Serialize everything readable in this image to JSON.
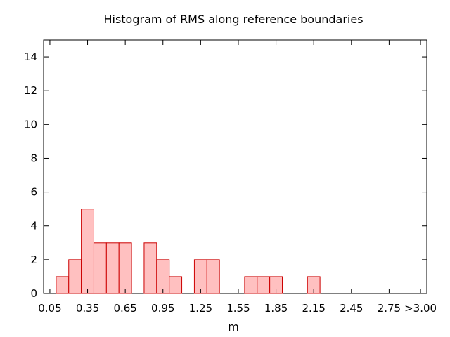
{
  "chart_data": {
    "type": "bar",
    "title": "Histogram of RMS along reference boundaries",
    "xlabel": "m",
    "ylabel": "",
    "xlim": [
      0.0,
      3.05
    ],
    "ylim": [
      0,
      15
    ],
    "bin_width": 0.1,
    "y_ticks": [
      0,
      2,
      4,
      6,
      8,
      10,
      12,
      14
    ],
    "x_ticks": [
      {
        "value": 0.05,
        "label": "0.05"
      },
      {
        "value": 0.35,
        "label": "0.35"
      },
      {
        "value": 0.65,
        "label": "0.65"
      },
      {
        "value": 0.95,
        "label": "0.95"
      },
      {
        "value": 1.25,
        "label": "1.25"
      },
      {
        "value": 1.55,
        "label": "1.55"
      },
      {
        "value": 1.85,
        "label": "1.85"
      },
      {
        "value": 2.15,
        "label": "2.15"
      },
      {
        "value": 2.45,
        "label": "2.45"
      },
      {
        "value": 2.75,
        "label": "2.75"
      },
      {
        "value": 3.0,
        "label": ">3.00"
      }
    ],
    "bins": [
      {
        "x": 0.15,
        "count": 1
      },
      {
        "x": 0.25,
        "count": 2
      },
      {
        "x": 0.35,
        "count": 5
      },
      {
        "x": 0.45,
        "count": 3
      },
      {
        "x": 0.55,
        "count": 3
      },
      {
        "x": 0.65,
        "count": 3
      },
      {
        "x": 0.85,
        "count": 3
      },
      {
        "x": 0.95,
        "count": 2
      },
      {
        "x": 1.05,
        "count": 1
      },
      {
        "x": 1.25,
        "count": 2
      },
      {
        "x": 1.35,
        "count": 2
      },
      {
        "x": 1.65,
        "count": 1
      },
      {
        "x": 1.75,
        "count": 1
      },
      {
        "x": 1.85,
        "count": 1
      },
      {
        "x": 2.15,
        "count": 1
      }
    ],
    "grid": false,
    "bar_fill": "#ffc0c0",
    "bar_stroke": "#cc0000"
  }
}
